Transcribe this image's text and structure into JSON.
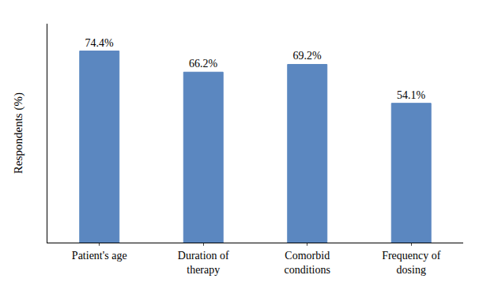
{
  "chart_data": {
    "type": "bar",
    "categories": [
      "Patient's age",
      "Duration of\ntherapy",
      "Comorbid\nconditions",
      "Frequency of\ndosing"
    ],
    "values": [
      74.4,
      66.2,
      69.2,
      54.1
    ],
    "value_labels": [
      "74.4%",
      "66.2%",
      "69.2%",
      "54.1%"
    ],
    "data_labels": true,
    "color": "#5b87c0",
    "ylabel": "Respondents (%)",
    "ylim": [
      0,
      85
    ],
    "yticks": [],
    "tick_labels": "x",
    "grid": false
  }
}
